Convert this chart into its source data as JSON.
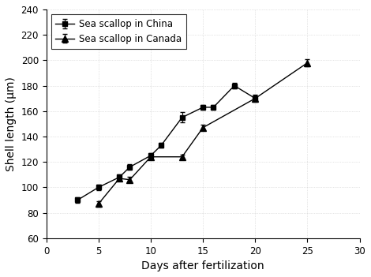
{
  "china_x": [
    3,
    5,
    7,
    8,
    10,
    11,
    13,
    15,
    16,
    18,
    20
  ],
  "china_y": [
    90,
    100,
    108,
    116,
    125,
    133,
    155,
    163,
    163,
    180,
    170
  ],
  "china_yerr": [
    2,
    2,
    2,
    2,
    2,
    2,
    4,
    2,
    2,
    2,
    2
  ],
  "canada_x": [
    5,
    7,
    8,
    10,
    13,
    15,
    20,
    25
  ],
  "canada_y": [
    87,
    107,
    106,
    124,
    124,
    147,
    170,
    198
  ],
  "canada_yerr": [
    2,
    2,
    2,
    2,
    2,
    2,
    3,
    3
  ],
  "china_label": "Sea scallop in China",
  "canada_label": "Sea scallop in Canada",
  "xlabel": "Days after fertilization",
  "ylabel": "Shell length (μm)",
  "xlim": [
    0,
    30
  ],
  "ylim": [
    60,
    240
  ],
  "xticks": [
    0,
    5,
    10,
    15,
    20,
    25,
    30
  ],
  "yticks": [
    60,
    80,
    100,
    120,
    140,
    160,
    180,
    200,
    220,
    240
  ],
  "line_color": "#555555",
  "marker_color": "#000000",
  "background": "#ffffff",
  "legend_fontsize": 8.5,
  "axis_fontsize": 10,
  "tick_fontsize": 8.5
}
